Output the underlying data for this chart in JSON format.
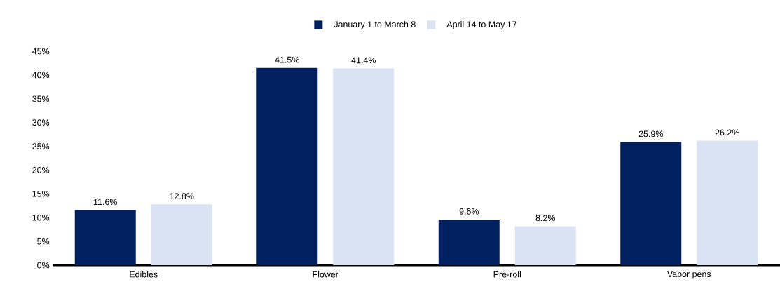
{
  "chart_data": {
    "type": "bar",
    "categories": [
      "Edibles",
      "Flower",
      "Pre-roll",
      "Vapor pens"
    ],
    "series": [
      {
        "name": "January 1 to March 8",
        "color": "#002060",
        "values": [
          11.6,
          41.5,
          9.6,
          25.9
        ],
        "value_labels": [
          "11.6%",
          "41.5%",
          "9.6%",
          "25.9%"
        ]
      },
      {
        "name": "April 14 to May 17",
        "color": "#dae3f3",
        "values": [
          12.8,
          41.4,
          8.2,
          26.2
        ],
        "value_labels": [
          "12.8%",
          "41.4%",
          "8.2%",
          "26.2%"
        ]
      }
    ],
    "ylim": [
      0,
      45
    ],
    "yticks": [
      {
        "value": 0,
        "label": "0%"
      },
      {
        "value": 5,
        "label": "5%"
      },
      {
        "value": 10,
        "label": "10%"
      },
      {
        "value": 15,
        "label": "15%"
      },
      {
        "value": 20,
        "label": "20%"
      },
      {
        "value": 25,
        "label": "25%"
      },
      {
        "value": 30,
        "label": "30%"
      },
      {
        "value": 35,
        "label": "35%"
      },
      {
        "value": 40,
        "label": "40%"
      },
      {
        "value": 45,
        "label": "45%"
      }
    ],
    "legend": "top",
    "grid": false
  }
}
